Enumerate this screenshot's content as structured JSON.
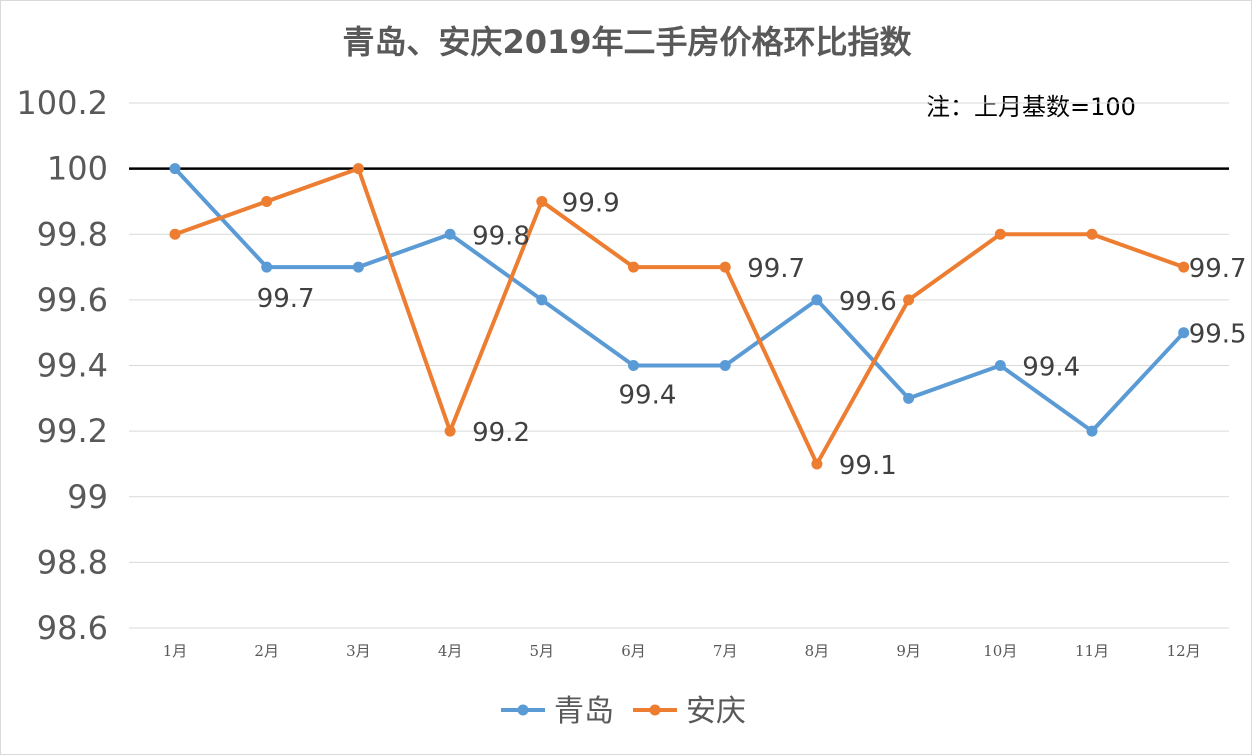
{
  "chart_data": {
    "type": "line",
    "title": "青岛、安庆2019年二手房价格环比指数",
    "note": "注：上月基数=100",
    "categories": [
      "1月",
      "2月",
      "3月",
      "4月",
      "5月",
      "6月",
      "7月",
      "8月",
      "9月",
      "10月",
      "11月",
      "12月"
    ],
    "series": [
      {
        "name": "青岛",
        "color": "#5b9bd5",
        "values": [
          100,
          99.7,
          99.7,
          99.8,
          99.6,
          99.4,
          99.4,
          99.6,
          99.3,
          99.4,
          99.2,
          99.5
        ]
      },
      {
        "name": "安庆",
        "color": "#ed7d31",
        "values": [
          99.8,
          99.9,
          100,
          99.2,
          99.9,
          99.7,
          99.7,
          99.1,
          99.6,
          99.8,
          99.8,
          99.7
        ]
      }
    ],
    "y_ticks": [
      "100.2",
      "100",
      "99.8",
      "99.6",
      "99.4",
      "99.2",
      "99",
      "98.8",
      "98.6"
    ],
    "ylim": [
      98.6,
      100.2
    ],
    "reference_line": 100,
    "data_labels": [
      {
        "series": 0,
        "index": 1,
        "text": "99.7"
      },
      {
        "series": 0,
        "index": 3,
        "text": "99.8"
      },
      {
        "series": 0,
        "index": 5,
        "text": "99.4"
      },
      {
        "series": 0,
        "index": 7,
        "text": "99.6"
      },
      {
        "series": 0,
        "index": 9,
        "text": "99.4"
      },
      {
        "series": 0,
        "index": 11,
        "text": "99.5"
      },
      {
        "series": 1,
        "index": 3,
        "text": "99.2"
      },
      {
        "series": 1,
        "index": 4,
        "text": "99.9"
      },
      {
        "series": 1,
        "index": 6,
        "text": "99.7"
      },
      {
        "series": 1,
        "index": 7,
        "text": "99.1"
      },
      {
        "series": 1,
        "index": 11,
        "text": "99.7"
      }
    ],
    "grid": true,
    "legend": "bottom"
  }
}
